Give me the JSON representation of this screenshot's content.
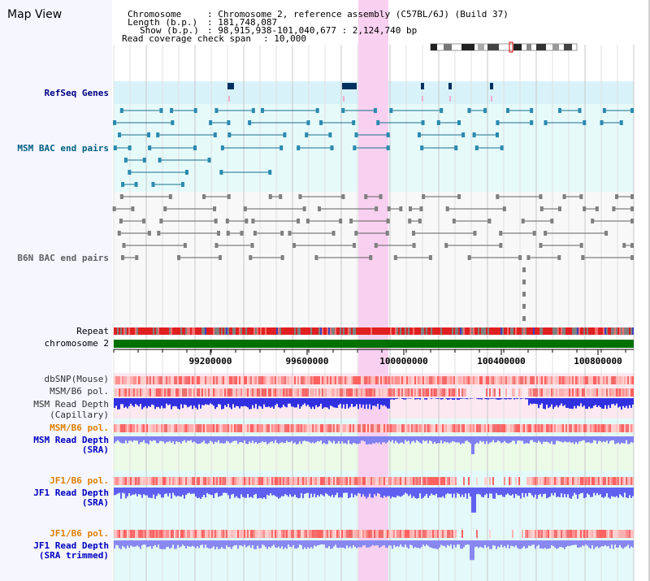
{
  "window": {
    "title": "Map View"
  },
  "info": {
    "chromosome_key": "Chromosome",
    "chromosome_val": ": Chromosome 2, reference assembly (C57BL/6J) (Build 37)",
    "length_key": "Length (b.p.)",
    "length_val": ": 181,748,087",
    "show_key": "Show (b.p.)",
    "show_val": ": 98,915,938-101,040,677 : 2,124,740 bp",
    "coverage_key": "Read coverage check span",
    "coverage_val": ": 10,000"
  },
  "tracks": {
    "refseq": "RefSeq Genes",
    "msm_bac": "MSM BAC end pairs",
    "b6n_bac": "B6N BAC end pairs",
    "repeat": "Repeat",
    "chromosome": "chromosome 2",
    "dbsnp": "dbSNP(Mouse)",
    "msm_b6_pol_1": "MSM/B6 pol.",
    "msm_read_depth_cap_1": "MSM Read Depth",
    "msm_read_depth_cap_2": "(Capillary)",
    "msm_b6_pol_2": "MSM/B6 pol.",
    "msm_read_depth_sra_1": "MSM Read Depth",
    "msm_read_depth_sra_2": "(SRA)",
    "jf1_b6_pol_1": "JF1/B6 pol.",
    "jf1_read_depth_sra_1": "JF1 Read Depth",
    "jf1_read_depth_sra_2": "(SRA)",
    "jf1_b6_pol_2": "JF1/B6 pol.",
    "jf1_read_depth_trim_1": "JF1 Read Depth",
    "jf1_read_depth_trim_2": "(SRA trimmed)"
  },
  "axis": {
    "ticks": [
      "99200000",
      "99600000",
      "100000000",
      "100400000",
      "100800000"
    ]
  },
  "colors": {
    "refseq_label": "#000080",
    "msm_label": "#006080",
    "b6n_label": "#606060",
    "pol_label": "#e08000",
    "depth_label": "#0000c0",
    "highlight": "#f8d0f0",
    "chromosome_bar": "#007000"
  }
}
